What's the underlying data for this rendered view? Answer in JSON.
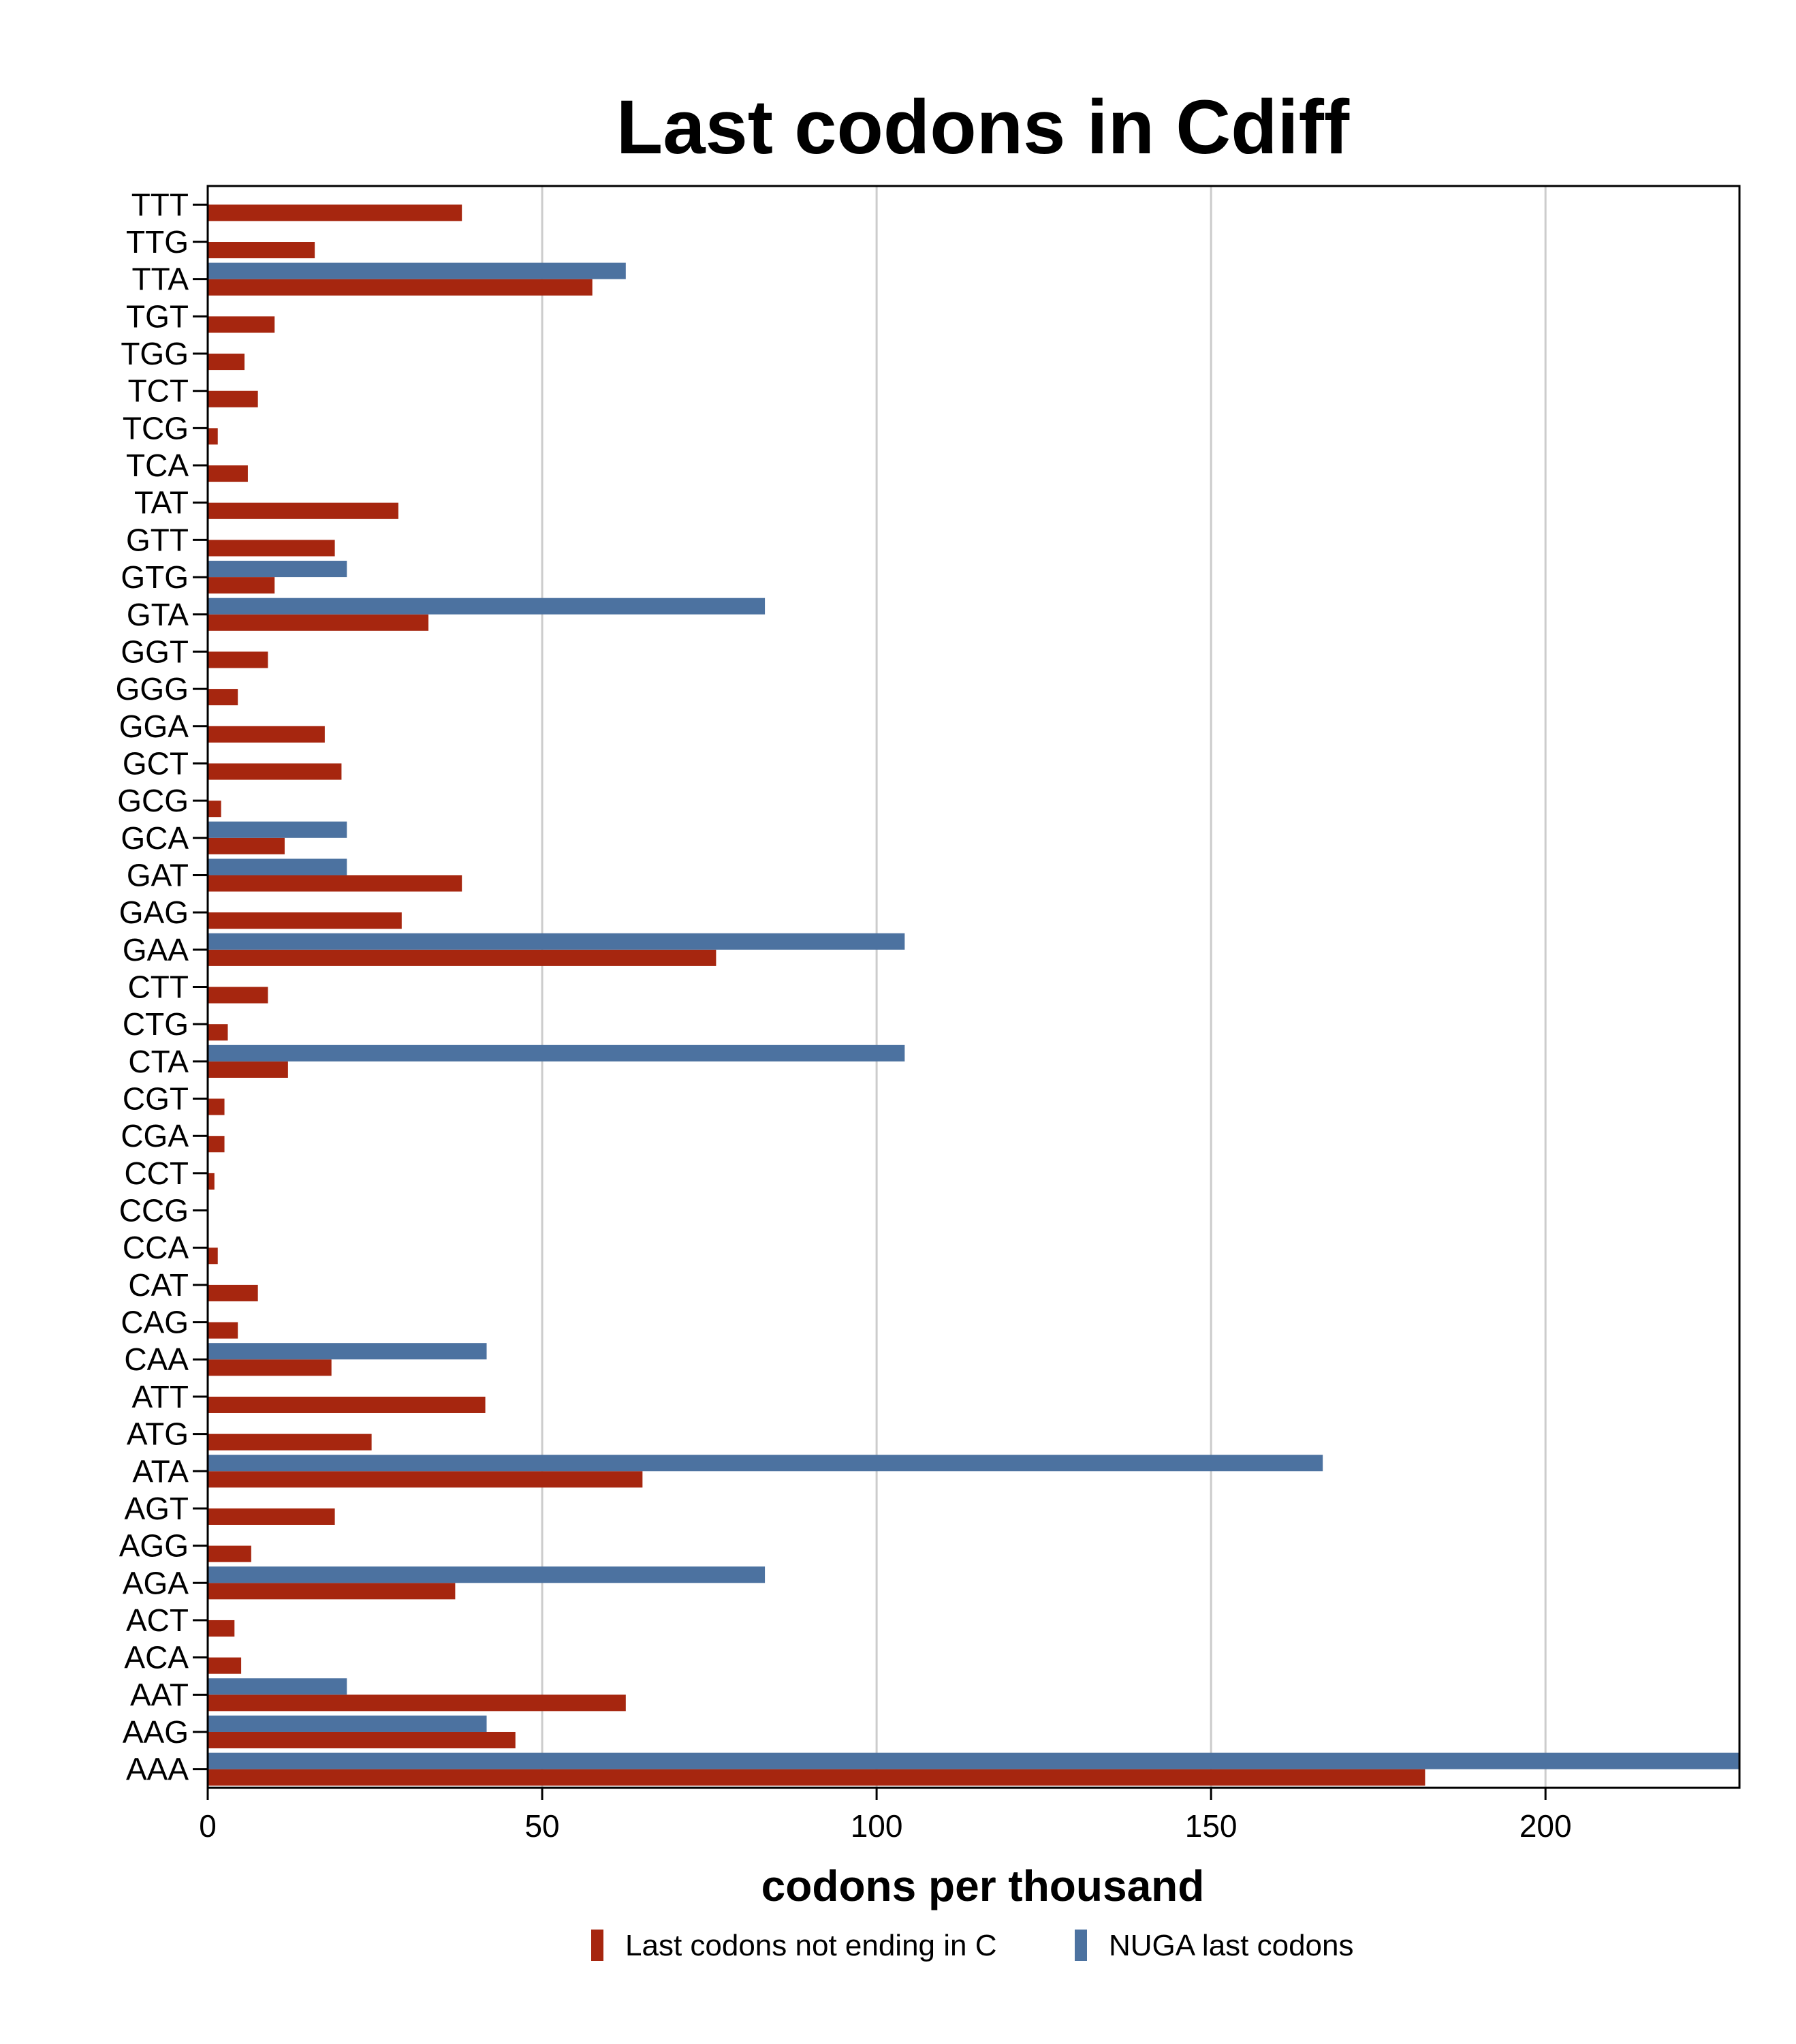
{
  "chart_data": {
    "type": "bar",
    "orientation": "horizontal",
    "title": "Last codons in Cdiff",
    "xlabel": "codons per thousand",
    "ylabel": "",
    "xlim": [
      0,
      229
    ],
    "xticks": [
      0,
      50,
      100,
      150,
      200
    ],
    "grid": true,
    "legend_position": "bottom",
    "categories": [
      "TTT",
      "TTG",
      "TTA",
      "TGT",
      "TGG",
      "TCT",
      "TCG",
      "TCA",
      "TAT",
      "GTT",
      "GTG",
      "GTA",
      "GGT",
      "GGG",
      "GGA",
      "GCT",
      "GCG",
      "GCA",
      "GAT",
      "GAG",
      "GAA",
      "CTT",
      "CTG",
      "CTA",
      "CGT",
      "CGA",
      "CCT",
      "CCG",
      "CCA",
      "CAT",
      "CAG",
      "CAA",
      "ATT",
      "ATG",
      "ATA",
      "AGT",
      "AGG",
      "AGA",
      "ACT",
      "ACA",
      "AAT",
      "AAG",
      "AAA"
    ],
    "series": [
      {
        "name": "Last codons not ending in C",
        "color": "#a6260f",
        "values": [
          38,
          16,
          57.5,
          10,
          5.5,
          7.5,
          1.5,
          6,
          28.5,
          19,
          10,
          33,
          9,
          4.5,
          17.5,
          20,
          2,
          11.5,
          38,
          29,
          76,
          9,
          3,
          12,
          2.5,
          2.5,
          1,
          0,
          1.5,
          7.5,
          4.5,
          18.5,
          41.5,
          24.5,
          65,
          19,
          6.5,
          37,
          4,
          5,
          62.5,
          46,
          182
        ]
      },
      {
        "name": "NUGA last codons",
        "color": "#4c72a0",
        "values": [
          0,
          0,
          62.5,
          0,
          0,
          0,
          0,
          0,
          0,
          0,
          20.8,
          83.3,
          0,
          0,
          0,
          0,
          0,
          20.8,
          20.8,
          0,
          104.2,
          0,
          0,
          104.2,
          0,
          0,
          0,
          0,
          0,
          0,
          0,
          41.7,
          0,
          0,
          166.7,
          0,
          0,
          83.3,
          0,
          0,
          20.8,
          41.7,
          229
        ]
      }
    ]
  }
}
